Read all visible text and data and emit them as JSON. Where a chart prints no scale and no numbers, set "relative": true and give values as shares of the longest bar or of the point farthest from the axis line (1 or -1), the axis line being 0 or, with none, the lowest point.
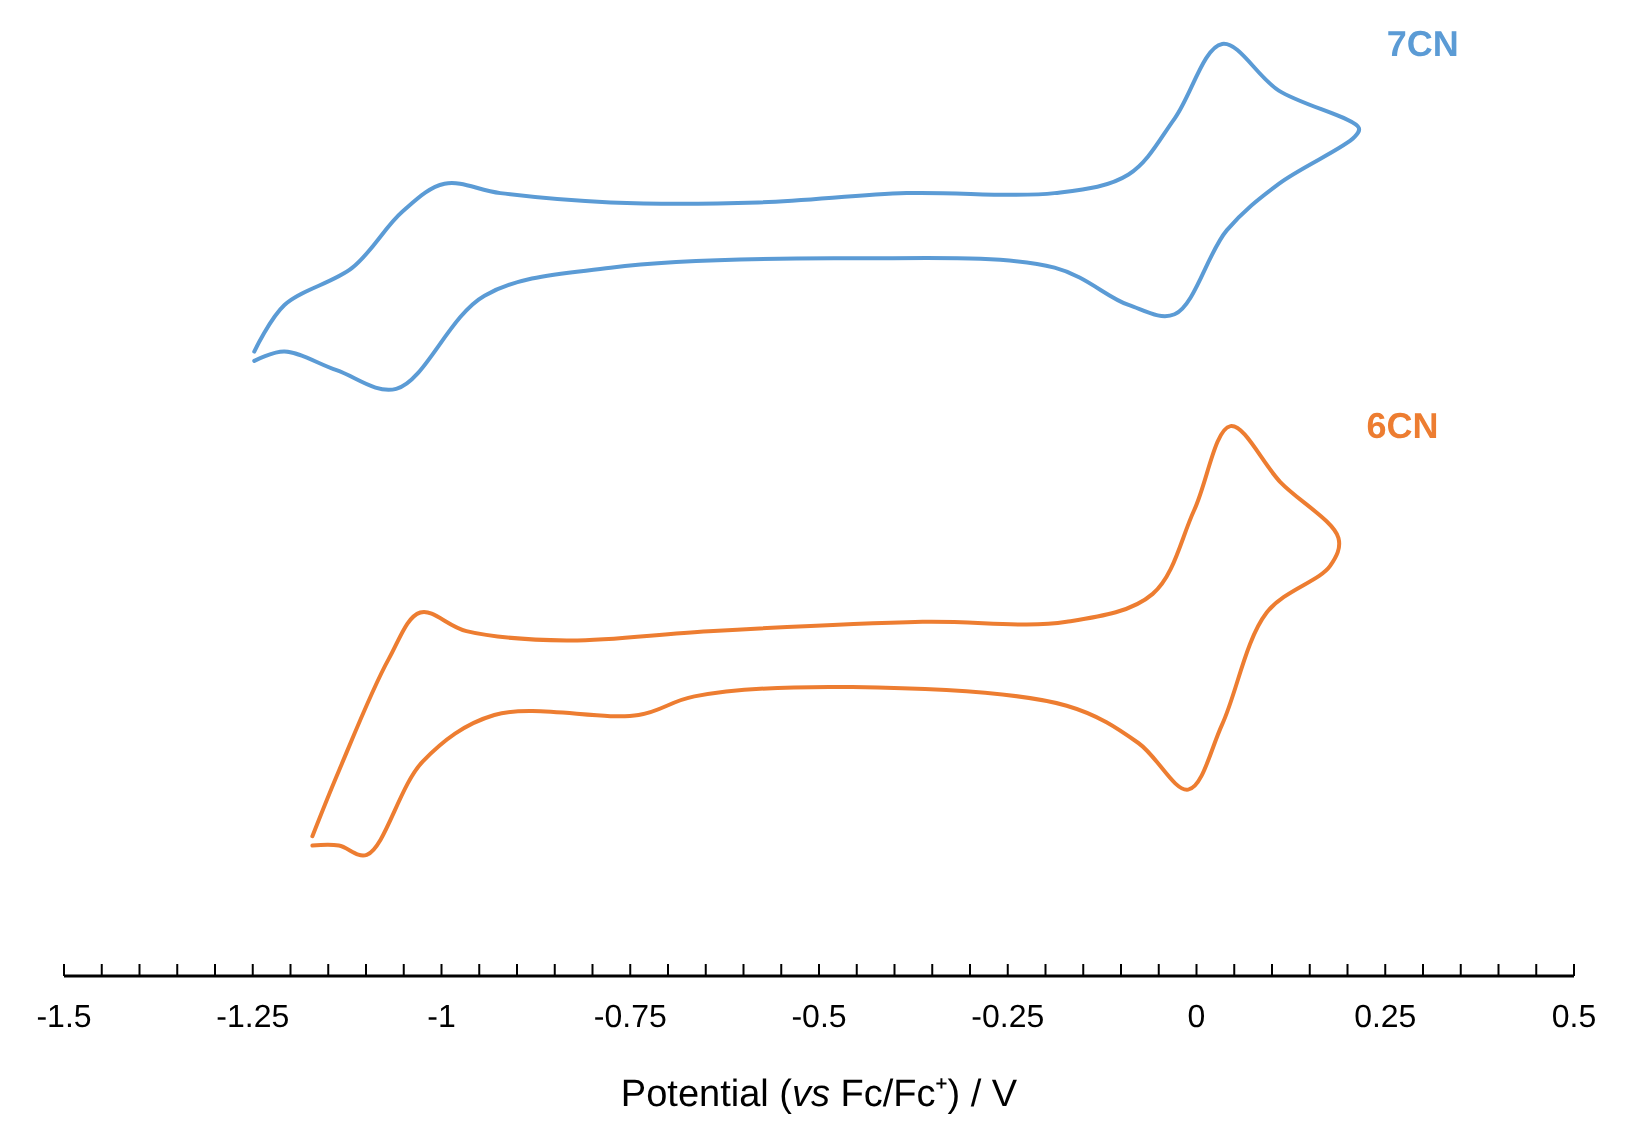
{
  "chart_data": {
    "type": "line",
    "relative": true,
    "xlabel": "Potential ($^{}$vs Fc/Fc⁺) / V",
    "xlim": [
      -1.5,
      0.5
    ],
    "xticks": [
      -1.5,
      -1.25,
      -1,
      -0.75,
      -0.5,
      -0.25,
      0,
      0.25,
      0.5
    ],
    "tick_labels": "x",
    "grid": false,
    "legend": false,
    "marker": "none",
    "line_style": "solid",
    "series": [
      {
        "name": "7CN",
        "color": "#5b9bd5",
        "x": [
          -1.248,
          -1.208,
          -1.118,
          -1.052,
          -0.996,
          -0.922,
          -0.776,
          -0.58,
          -0.384,
          -0.188,
          -0.09,
          -0.029,
          0.034,
          0.109,
          0.215,
          0.209,
          0.109,
          0.04,
          -0.029,
          -0.09,
          -0.188,
          -0.461,
          -0.776,
          -0.943,
          -1.06,
          -1.139,
          -1.208,
          -1.248
        ],
        "values": [
          0.67,
          0.72,
          0.76,
          0.82,
          0.85,
          0.84,
          0.83,
          0.83,
          0.84,
          0.84,
          0.86,
          0.92,
          1.0,
          0.95,
          0.91,
          0.9,
          0.85,
          0.8,
          0.71,
          0.72,
          0.76,
          0.77,
          0.76,
          0.73,
          0.63,
          0.65,
          0.67,
          0.66
        ]
      },
      {
        "name": "6CN",
        "color": "#ed7d31",
        "x": [
          -1.171,
          -1.136,
          -1.07,
          -1.028,
          -0.967,
          -0.834,
          -0.646,
          -0.363,
          -0.172,
          -0.058,
          -0.003,
          0.045,
          0.111,
          0.188,
          0.177,
          0.093,
          0.034,
          -0.011,
          -0.077,
          -0.172,
          -0.456,
          -0.665,
          -0.739,
          -0.93,
          -1.025,
          -1.099,
          -1.136,
          -1.171
        ],
        "values": [
          0.15,
          0.22,
          0.34,
          0.39,
          0.37,
          0.36,
          0.37,
          0.38,
          0.38,
          0.41,
          0.5,
          0.59,
          0.53,
          0.47,
          0.44,
          0.39,
          0.27,
          0.2,
          0.25,
          0.29,
          0.31,
          0.3,
          0.28,
          0.28,
          0.23,
          0.13,
          0.14,
          0.14
        ]
      }
    ]
  }
}
